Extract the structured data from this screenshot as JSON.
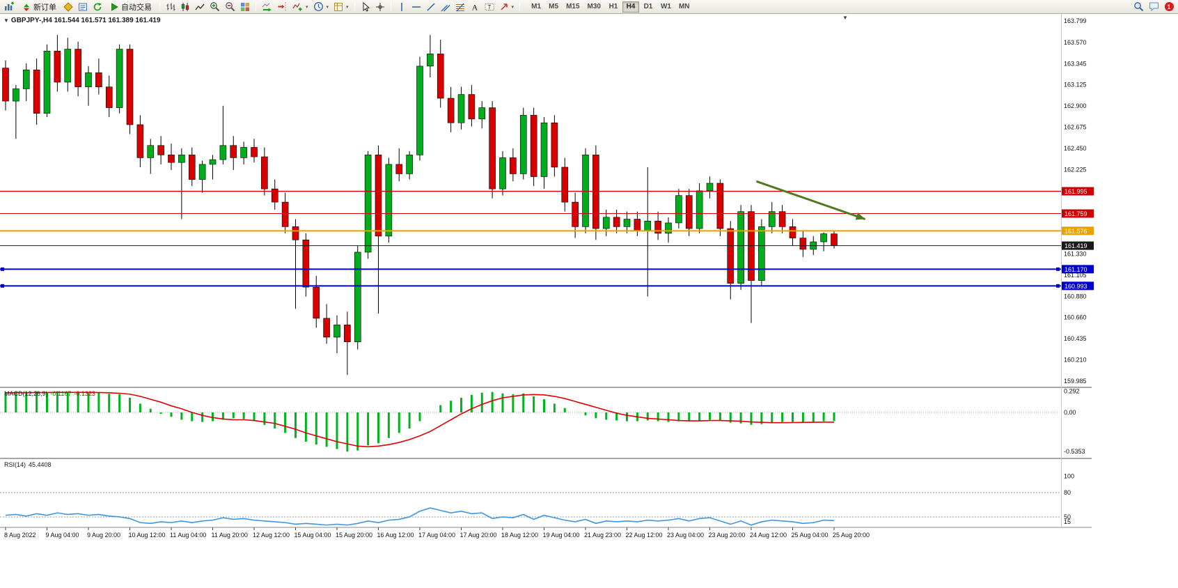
{
  "window": {
    "title_symbol": "GBPJPY-,H4",
    "title_ohlc": "161.544 161.571 161.389 161.419",
    "collapse_icon": "▼",
    "scroll_marker": "▼"
  },
  "toolbar": {
    "new_order_label": "新订单",
    "autotrading_label": "自动交易",
    "timeframes": [
      "M1",
      "M5",
      "M15",
      "M30",
      "H1",
      "H4",
      "D1",
      "W1",
      "MN"
    ],
    "active_timeframe": "H4",
    "notification_count": "1",
    "icons": [
      "new-chart",
      "new-order",
      "metaeditor",
      "market-watch",
      "refresh",
      "autotrading",
      "ohlc-bars",
      "candlestick-chart",
      "line-chart",
      "zoom-in",
      "zoom-out",
      "tile-windows",
      "auto-scroll",
      "chart-shift",
      "indicators",
      "periods",
      "templates",
      "cursor",
      "crosshair",
      "vertical-line",
      "horizontal-line",
      "trendline",
      "equidistant-channel",
      "fibonacci",
      "text",
      "text-label",
      "arrows",
      "search",
      "chat",
      "notifications"
    ]
  },
  "chart_data": {
    "type": "candlestick",
    "symbol": "GBPJPY-",
    "timeframe": "H4",
    "ohlc_display": {
      "open": "161.544",
      "high": "161.571",
      "low": "161.389",
      "close": "161.419"
    },
    "ylim": [
      159.985,
      163.799
    ],
    "y_axis_labels": [
      "163.799",
      "163.570",
      "163.345",
      "163.125",
      "162.900",
      "162.675",
      "162.450",
      "162.225",
      "161.330",
      "161.105",
      "160.880",
      "160.660",
      "160.435",
      "160.210",
      "159.985"
    ],
    "x_labels": [
      "8 Aug 2022",
      "9 Aug 04:00",
      "9 Aug 20:00",
      "10 Aug 12:00",
      "11 Aug 04:00",
      "11 Aug 20:00",
      "12 Aug 12:00",
      "15 Aug 04:00",
      "15 Aug 20:00",
      "16 Aug 12:00",
      "17 Aug 04:00",
      "17 Aug 20:00",
      "18 Aug 12:00",
      "19 Aug 04:00",
      "21 Aug 23:00",
      "22 Aug 12:00",
      "23 Aug 04:00",
      "23 Aug 20:00",
      "24 Aug 12:00",
      "25 Aug 04:00",
      "25 Aug 20:00"
    ],
    "candles_per_label": 4,
    "up_color": "#00ad1d",
    "down_color": "#d90000",
    "candles": [
      [
        163.3,
        163.38,
        162.85,
        162.95
      ],
      [
        162.95,
        163.12,
        162.55,
        163.08
      ],
      [
        163.08,
        163.35,
        162.95,
        163.28
      ],
      [
        163.28,
        163.4,
        162.7,
        162.82
      ],
      [
        162.82,
        163.55,
        162.78,
        163.48
      ],
      [
        163.48,
        163.65,
        163.05,
        163.15
      ],
      [
        163.15,
        163.62,
        163.05,
        163.5
      ],
      [
        163.5,
        163.58,
        163.0,
        163.1
      ],
      [
        163.1,
        163.32,
        162.9,
        163.25
      ],
      [
        163.25,
        163.4,
        163.02,
        163.1
      ],
      [
        163.1,
        163.22,
        162.78,
        162.88
      ],
      [
        162.88,
        163.55,
        162.82,
        163.5
      ],
      [
        163.5,
        163.55,
        162.6,
        162.7
      ],
      [
        162.7,
        162.8,
        162.25,
        162.35
      ],
      [
        162.35,
        162.55,
        162.18,
        162.48
      ],
      [
        162.48,
        162.58,
        162.28,
        162.38
      ],
      [
        162.38,
        162.5,
        162.22,
        162.3
      ],
      [
        162.3,
        162.45,
        161.7,
        162.38
      ],
      [
        162.38,
        162.46,
        162.05,
        162.12
      ],
      [
        162.12,
        162.32,
        161.98,
        162.28
      ],
      [
        162.28,
        162.38,
        162.12,
        162.33
      ],
      [
        162.33,
        162.9,
        162.28,
        162.48
      ],
      [
        162.48,
        162.58,
        162.22,
        162.35
      ],
      [
        162.35,
        162.52,
        162.28,
        162.46
      ],
      [
        162.46,
        162.55,
        162.3,
        162.36
      ],
      [
        162.36,
        162.46,
        161.95,
        162.02
      ],
      [
        162.02,
        162.12,
        161.8,
        161.88
      ],
      [
        161.88,
        161.98,
        161.55,
        161.62
      ],
      [
        161.62,
        161.7,
        160.75,
        161.48
      ],
      [
        161.48,
        161.55,
        160.88,
        160.98
      ],
      [
        160.98,
        161.1,
        160.55,
        160.65
      ],
      [
        160.65,
        160.8,
        160.38,
        160.45
      ],
      [
        160.45,
        160.68,
        160.28,
        160.58
      ],
      [
        160.58,
        160.72,
        160.05,
        160.4
      ],
      [
        160.4,
        161.42,
        160.32,
        161.35
      ],
      [
        161.35,
        162.42,
        161.28,
        162.38
      ],
      [
        162.38,
        162.48,
        160.7,
        161.52
      ],
      [
        161.52,
        162.35,
        161.45,
        162.28
      ],
      [
        162.28,
        162.45,
        162.1,
        162.18
      ],
      [
        162.18,
        162.42,
        162.12,
        162.38
      ],
      [
        162.38,
        163.42,
        162.32,
        163.32
      ],
      [
        163.32,
        163.65,
        163.2,
        163.45
      ],
      [
        163.45,
        163.6,
        162.88,
        162.98
      ],
      [
        162.98,
        163.1,
        162.62,
        162.72
      ],
      [
        162.72,
        163.1,
        162.65,
        163.02
      ],
      [
        163.02,
        163.12,
        162.68,
        162.76
      ],
      [
        162.76,
        162.95,
        162.66,
        162.88
      ],
      [
        162.88,
        162.95,
        161.92,
        162.02
      ],
      [
        162.02,
        162.42,
        161.95,
        162.35
      ],
      [
        162.35,
        162.45,
        162.1,
        162.18
      ],
      [
        162.18,
        162.88,
        162.12,
        162.8
      ],
      [
        162.8,
        162.88,
        162.05,
        162.15
      ],
      [
        162.15,
        162.78,
        162.02,
        162.72
      ],
      [
        162.72,
        162.8,
        162.15,
        162.25
      ],
      [
        162.25,
        162.35,
        161.78,
        161.88
      ],
      [
        161.88,
        161.98,
        161.5,
        161.62
      ],
      [
        161.62,
        162.45,
        161.55,
        162.38
      ],
      [
        162.38,
        162.48,
        161.48,
        161.6
      ],
      [
        161.6,
        161.8,
        161.52,
        161.72
      ],
      [
        161.72,
        161.8,
        161.55,
        161.62
      ],
      [
        161.62,
        161.78,
        161.55,
        161.7
      ],
      [
        161.7,
        161.78,
        161.52,
        161.58
      ],
      [
        161.58,
        162.25,
        160.88,
        161.68
      ],
      [
        161.68,
        161.78,
        161.48,
        161.55
      ],
      [
        161.55,
        161.72,
        161.45,
        161.66
      ],
      [
        161.66,
        162.02,
        161.6,
        161.95
      ],
      [
        161.95,
        162.02,
        161.52,
        161.6
      ],
      [
        161.6,
        162.08,
        161.55,
        162.0
      ],
      [
        162.0,
        162.15,
        161.92,
        162.08
      ],
      [
        162.08,
        162.12,
        161.52,
        161.6
      ],
      [
        161.6,
        161.68,
        160.85,
        161.02
      ],
      [
        161.02,
        161.85,
        160.95,
        161.78
      ],
      [
        161.78,
        161.85,
        160.6,
        161.05
      ],
      [
        161.05,
        161.7,
        161.0,
        161.62
      ],
      [
        161.62,
        161.88,
        161.55,
        161.78
      ],
      [
        161.78,
        161.85,
        161.55,
        161.62
      ],
      [
        161.62,
        161.7,
        161.42,
        161.5
      ],
      [
        161.5,
        161.58,
        161.3,
        161.38
      ],
      [
        161.38,
        161.52,
        161.32,
        161.46
      ],
      [
        161.46,
        161.56,
        161.36,
        161.545
      ],
      [
        161.544,
        161.571,
        161.389,
        161.419
      ]
    ],
    "levels": [
      {
        "price": 161.995,
        "label": "161.995",
        "color": "#cc0000",
        "width": 1.4,
        "handles": false
      },
      {
        "price": 161.759,
        "label": "161.759",
        "color": "#cc0000",
        "width": 1,
        "handles": false
      },
      {
        "price": 161.576,
        "label": "161.576",
        "color": "#e8a200",
        "width": 2,
        "handles": false
      },
      {
        "price": 161.419,
        "label": "161.419",
        "color": "#1a1a1a",
        "width": 1,
        "handles": false
      },
      {
        "price": 161.17,
        "label": "161.170",
        "color": "#0000cc",
        "width": 2,
        "handles": true
      },
      {
        "price": 160.993,
        "label": "160.993",
        "color": "#0000cc",
        "width": 2,
        "handles": true
      }
    ],
    "arrow": {
      "from": {
        "index": 72.5,
        "price": 162.1
      },
      "to": {
        "index": 83,
        "price": 161.7
      },
      "color": "#4f7a21"
    },
    "macd": {
      "label": "MACD(12,26,9)",
      "value": "-0.1167",
      "signal": "-0.1323",
      "hist_color": "#00b41e",
      "signal_color": "#e00000",
      "axis_labels": [
        "0.292",
        "0.00",
        "-0.5353"
      ],
      "axis_values": [
        0.292,
        0,
        -0.5353
      ],
      "histogram": [
        0.27,
        0.28,
        0.265,
        0.285,
        0.27,
        0.29,
        0.275,
        0.28,
        0.265,
        0.27,
        0.255,
        0.25,
        0.2,
        0.12,
        0.05,
        -0.02,
        -0.06,
        -0.1,
        -0.12,
        -0.13,
        -0.12,
        -0.1,
        -0.08,
        -0.09,
        -0.12,
        -0.17,
        -0.22,
        -0.28,
        -0.35,
        -0.4,
        -0.44,
        -0.47,
        -0.5,
        -0.5353,
        -0.52,
        -0.45,
        -0.42,
        -0.35,
        -0.28,
        -0.22,
        -0.12,
        0.0,
        0.1,
        0.16,
        0.2,
        0.24,
        0.27,
        0.28,
        0.26,
        0.25,
        0.26,
        0.22,
        0.18,
        0.12,
        0.06,
        0.0,
        -0.04,
        -0.08,
        -0.1,
        -0.11,
        -0.12,
        -0.12,
        -0.11,
        -0.12,
        -0.13,
        -0.12,
        -0.12,
        -0.11,
        -0.1,
        -0.11,
        -0.14,
        -0.15,
        -0.17,
        -0.16,
        -0.14,
        -0.13,
        -0.13,
        -0.14,
        -0.13,
        -0.12,
        -0.1167
      ],
      "signal_line": [
        0.27,
        0.27,
        0.27,
        0.272,
        0.272,
        0.274,
        0.274,
        0.275,
        0.273,
        0.272,
        0.268,
        0.262,
        0.25,
        0.22,
        0.18,
        0.14,
        0.09,
        0.05,
        0.0,
        -0.04,
        -0.07,
        -0.09,
        -0.1,
        -0.1,
        -0.11,
        -0.13,
        -0.15,
        -0.19,
        -0.23,
        -0.28,
        -0.32,
        -0.36,
        -0.4,
        -0.43,
        -0.46,
        -0.47,
        -0.46,
        -0.44,
        -0.41,
        -0.37,
        -0.32,
        -0.26,
        -0.18,
        -0.1,
        -0.02,
        0.05,
        0.11,
        0.16,
        0.2,
        0.22,
        0.24,
        0.245,
        0.24,
        0.22,
        0.19,
        0.15,
        0.11,
        0.07,
        0.03,
        -0.01,
        -0.04,
        -0.06,
        -0.08,
        -0.09,
        -0.1,
        -0.11,
        -0.115,
        -0.115,
        -0.11,
        -0.11,
        -0.115,
        -0.12,
        -0.13,
        -0.135,
        -0.14,
        -0.14,
        -0.138,
        -0.136,
        -0.134,
        -0.133,
        -0.1323
      ]
    },
    "rsi": {
      "label": "RSI(14)",
      "value": "45.4408",
      "color": "#3c96e0",
      "axis_labels": [
        "100",
        "80",
        "50",
        "15"
      ],
      "axis_values": [
        100,
        80,
        50,
        15
      ],
      "level_lines": [
        80,
        50
      ],
      "values": [
        52,
        53,
        51,
        54,
        52,
        55,
        53,
        54,
        52,
        53,
        51,
        50,
        48,
        43,
        42,
        44,
        43,
        45,
        43,
        45,
        46,
        49,
        47,
        48,
        46,
        45,
        44,
        43,
        41,
        42,
        41,
        40,
        41,
        40,
        42,
        45,
        43,
        46,
        47,
        50,
        57,
        61,
        58,
        55,
        57,
        54,
        55,
        48,
        50,
        49,
        53,
        47,
        52,
        49,
        46,
        44,
        47,
        42,
        45,
        44,
        45,
        44,
        46,
        45,
        46,
        48,
        45,
        48,
        49,
        45,
        41,
        45,
        40,
        44,
        46,
        45,
        44,
        42,
        43,
        46,
        45.44
      ]
    }
  }
}
